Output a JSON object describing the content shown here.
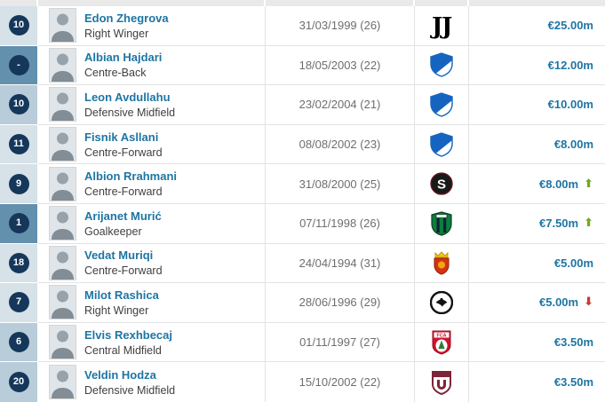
{
  "theme": {
    "link_color": "#1d75a3",
    "value_color": "#1d75a3",
    "trend_up_color": "#76a821",
    "trend_down_color": "#c43b3b",
    "number_circle_color": "#15375a",
    "number_bg_light": "#d6e1e8",
    "number_bg_medium": "#b8ccd9",
    "number_bg_dark": "#6390ad",
    "trend_up_glyph": "⬆",
    "trend_down_glyph": "⬇"
  },
  "table": {
    "rows": [
      {
        "number": "10",
        "name": "Edon Zhegrova",
        "position": "Right Winger",
        "birth": "31/03/1999 (26)",
        "club_icon": "juventus-logo",
        "value": "€25.00m",
        "trend": null,
        "number_bg": "light"
      },
      {
        "number": "-",
        "name": "Albian Hajdari",
        "position": "Centre-Back",
        "birth": "18/05/2003 (22)",
        "club_icon": "hoffenheim-logo",
        "value": "€12.00m",
        "trend": null,
        "number_bg": "dark"
      },
      {
        "number": "10",
        "name": "Leon Avdullahu",
        "position": "Defensive Midfield",
        "birth": "23/02/2004 (21)",
        "club_icon": "hoffenheim-logo",
        "value": "€10.00m",
        "trend": null,
        "number_bg": "medium"
      },
      {
        "number": "11",
        "name": "Fisnik Asllani",
        "position": "Centre-Forward",
        "birth": "08/08/2002 (23)",
        "club_icon": "hoffenheim-logo",
        "value": "€8.00m",
        "trend": null,
        "number_bg": "light"
      },
      {
        "number": "9",
        "name": "Albion Rrahmani",
        "position": "Centre-Forward",
        "birth": "31/08/2000 (25)",
        "club_icon": "sparta-prague-logo",
        "value": "€8.00m",
        "trend": "up",
        "number_bg": "light"
      },
      {
        "number": "1",
        "name": "Arijanet Murić",
        "position": "Goalkeeper",
        "birth": "07/11/1998 (26)",
        "club_icon": "sassuolo-logo",
        "value": "€7.50m",
        "trend": "up",
        "number_bg": "dark"
      },
      {
        "number": "18",
        "name": "Vedat Muriqi",
        "position": "Centre-Forward",
        "birth": "24/04/1994 (31)",
        "club_icon": "mallorca-logo",
        "value": "€5.00m",
        "trend": null,
        "number_bg": "light"
      },
      {
        "number": "7",
        "name": "Milot Rashica",
        "position": "Right Winger",
        "birth": "28/06/1996 (29)",
        "club_icon": "besiktas-logo",
        "value": "€5.00m",
        "trend": "down",
        "number_bg": "light"
      },
      {
        "number": "6",
        "name": "Elvis Rexhbecaj",
        "position": "Central Midfield",
        "birth": "01/11/1997 (27)",
        "club_icon": "augsburg-logo",
        "value": "€3.50m",
        "trend": null,
        "number_bg": "medium"
      },
      {
        "number": "20",
        "name": "Veldin Hodza",
        "position": "Defensive Midfield",
        "birth": "15/10/2002 (22)",
        "club_icon": "cfr-cluj-logo",
        "value": "€3.50m",
        "trend": null,
        "number_bg": "medium"
      }
    ]
  }
}
